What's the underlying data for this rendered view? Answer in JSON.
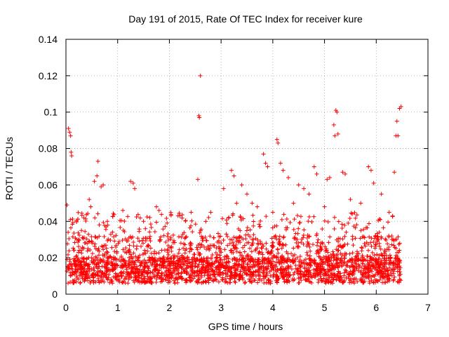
{
  "chart_data": {
    "type": "scatter",
    "title": "Day 191 of 2015, Rate Of TEC Index for receiver kure",
    "xlabel": "GPS time / hours",
    "ylabel": "ROTI / TECUs",
    "xlim": [
      0,
      7
    ],
    "ylim": [
      0,
      0.14
    ],
    "x_ticks": [
      "0",
      "1",
      "2",
      "3",
      "4",
      "5",
      "6",
      "7"
    ],
    "y_ticks": [
      "0",
      "0.02",
      "0.04",
      "0.06",
      "0.08",
      "0.1",
      "0.12",
      "0.14"
    ],
    "grid": true,
    "marker": "+",
    "color": "#ff0000",
    "series": [
      {
        "points": [
          [
            0.02,
            0.049
          ],
          [
            0.05,
            0.091
          ],
          [
            0.07,
            0.089
          ],
          [
            0.09,
            0.087
          ],
          [
            0.1,
            0.078
          ],
          [
            0.11,
            0.076
          ],
          [
            0.45,
            0.052
          ],
          [
            0.48,
            0.048
          ],
          [
            0.55,
            0.062
          ],
          [
            0.6,
            0.065
          ],
          [
            0.62,
            0.073
          ],
          [
            0.68,
            0.059
          ],
          [
            0.72,
            0.06
          ],
          [
            1.25,
            0.062
          ],
          [
            1.3,
            0.061
          ],
          [
            1.33,
            0.058
          ],
          [
            1.75,
            0.048
          ],
          [
            1.8,
            0.046
          ],
          [
            2.42,
            0.045
          ],
          [
            2.55,
            0.063
          ],
          [
            2.57,
            0.098
          ],
          [
            2.58,
            0.097
          ],
          [
            2.6,
            0.12
          ],
          [
            3.2,
            0.068
          ],
          [
            3.25,
            0.065
          ],
          [
            3.4,
            0.06
          ],
          [
            3.5,
            0.055
          ],
          [
            3.6,
            0.05
          ],
          [
            3.7,
            0.048
          ],
          [
            3.82,
            0.077
          ],
          [
            3.86,
            0.072
          ],
          [
            3.9,
            0.07
          ],
          [
            4.08,
            0.085
          ],
          [
            4.1,
            0.083
          ],
          [
            4.15,
            0.072
          ],
          [
            4.2,
            0.068
          ],
          [
            4.3,
            0.064
          ],
          [
            4.5,
            0.06
          ],
          [
            4.6,
            0.058
          ],
          [
            4.8,
            0.07
          ],
          [
            4.85,
            0.066
          ],
          [
            5.05,
            0.063
          ],
          [
            5.1,
            0.064
          ],
          [
            5.18,
            0.093
          ],
          [
            5.2,
            0.087
          ],
          [
            5.22,
            0.101
          ],
          [
            5.24,
            0.1
          ],
          [
            5.26,
            0.088
          ],
          [
            5.35,
            0.067
          ],
          [
            5.4,
            0.066
          ],
          [
            5.85,
            0.07
          ],
          [
            5.9,
            0.068
          ],
          [
            5.95,
            0.061
          ],
          [
            6.35,
            0.067
          ],
          [
            6.38,
            0.087
          ],
          [
            6.4,
            0.095
          ],
          [
            6.42,
            0.087
          ],
          [
            6.45,
            0.102
          ],
          [
            6.48,
            0.103
          ],
          [
            0.3,
            0.035
          ],
          [
            0.8,
            0.04
          ],
          [
            1.1,
            0.046
          ],
          [
            1.5,
            0.04
          ],
          [
            2.2,
            0.043
          ],
          [
            2.8,
            0.045
          ],
          [
            3.05,
            0.058
          ],
          [
            3.3,
            0.05
          ],
          [
            4.0,
            0.045
          ],
          [
            4.4,
            0.05
          ],
          [
            4.7,
            0.055
          ],
          [
            5.0,
            0.048
          ],
          [
            5.5,
            0.052
          ],
          [
            5.7,
            0.05
          ],
          [
            6.1,
            0.055
          ],
          [
            6.25,
            0.045
          ]
        ]
      }
    ]
  }
}
